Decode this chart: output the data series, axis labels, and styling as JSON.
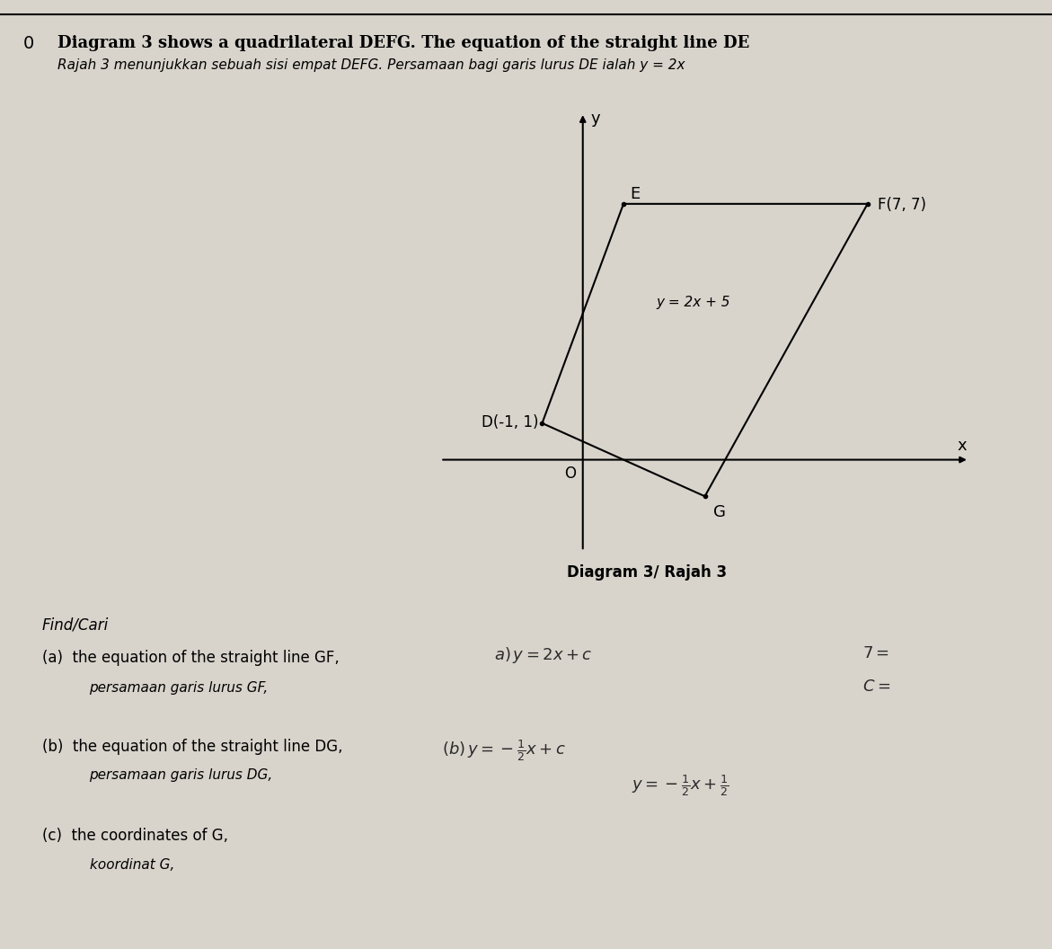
{
  "title_line1": "Diagram 3 shows a quadrilateral DEFG. The equation of the straight line DE",
  "title_line2": "Rajah 3 menunjukkan sebuah sisi empat DEFG. Persamaan bagi garis lurus DE ialah y = 2x",
  "diagram_label": "Diagram 3/ Rajah 3",
  "question_number": "0",
  "point_D": [
    -1,
    1
  ],
  "point_E": [
    1,
    7
  ],
  "point_F": [
    7,
    7
  ],
  "point_G": [
    3,
    -1
  ],
  "label_D": "D(-1, 1)",
  "label_E": "E",
  "label_F": "F(7, 7)",
  "label_G": "G",
  "eq_EF_label": "y = 2x + 5",
  "axis_color": "#000000",
  "shape_color": "#000000",
  "bg_color": "#d8d4cc",
  "text_color": "#000000",
  "find_cari": "Find/Cari",
  "part_a_en": "the equation of the straight line GF,",
  "part_a_ms": "persamaan garis lurus GF,",
  "part_a_label": "(a)",
  "part_b_en": "the equation of the straight line DG,",
  "part_b_ms": "persamaan garis lurus DG,",
  "part_b_label": "(b)",
  "part_c_en": "the coordinates of G,",
  "part_c_ms": "koordinat G,",
  "part_c_label": "(c)"
}
